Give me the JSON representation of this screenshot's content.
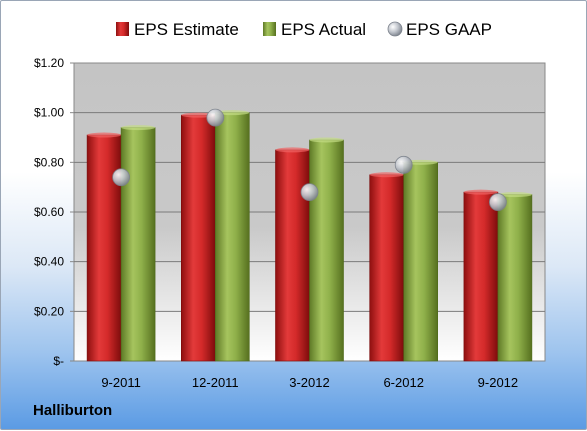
{
  "chart_data": {
    "type": "bar",
    "categories": [
      "9-2011",
      "12-2011",
      "3-2012",
      "6-2012",
      "9-2012"
    ],
    "series": [
      {
        "name": "EPS Estimate",
        "type": "bar",
        "color": "#d42a2a",
        "values": [
          0.91,
          0.99,
          0.85,
          0.75,
          0.68
        ]
      },
      {
        "name": "EPS Actual",
        "type": "bar",
        "color": "#8fb04a",
        "values": [
          0.94,
          1.0,
          0.89,
          0.8,
          0.67
        ]
      },
      {
        "name": "EPS GAAP",
        "type": "scatter",
        "color": "#b8bcc4",
        "values": [
          0.74,
          0.98,
          0.68,
          0.79,
          0.64
        ]
      }
    ],
    "ylim": [
      0,
      1.2
    ],
    "yticks": [
      0,
      0.2,
      0.4,
      0.6,
      0.8,
      1.0,
      1.2
    ],
    "ytick_labels": [
      "$-",
      "$0.20",
      "$0.40",
      "$0.60",
      "$0.80",
      "$1.00",
      "$1.20"
    ],
    "grid": true,
    "legend_position": "top"
  },
  "company": "Halliburton"
}
